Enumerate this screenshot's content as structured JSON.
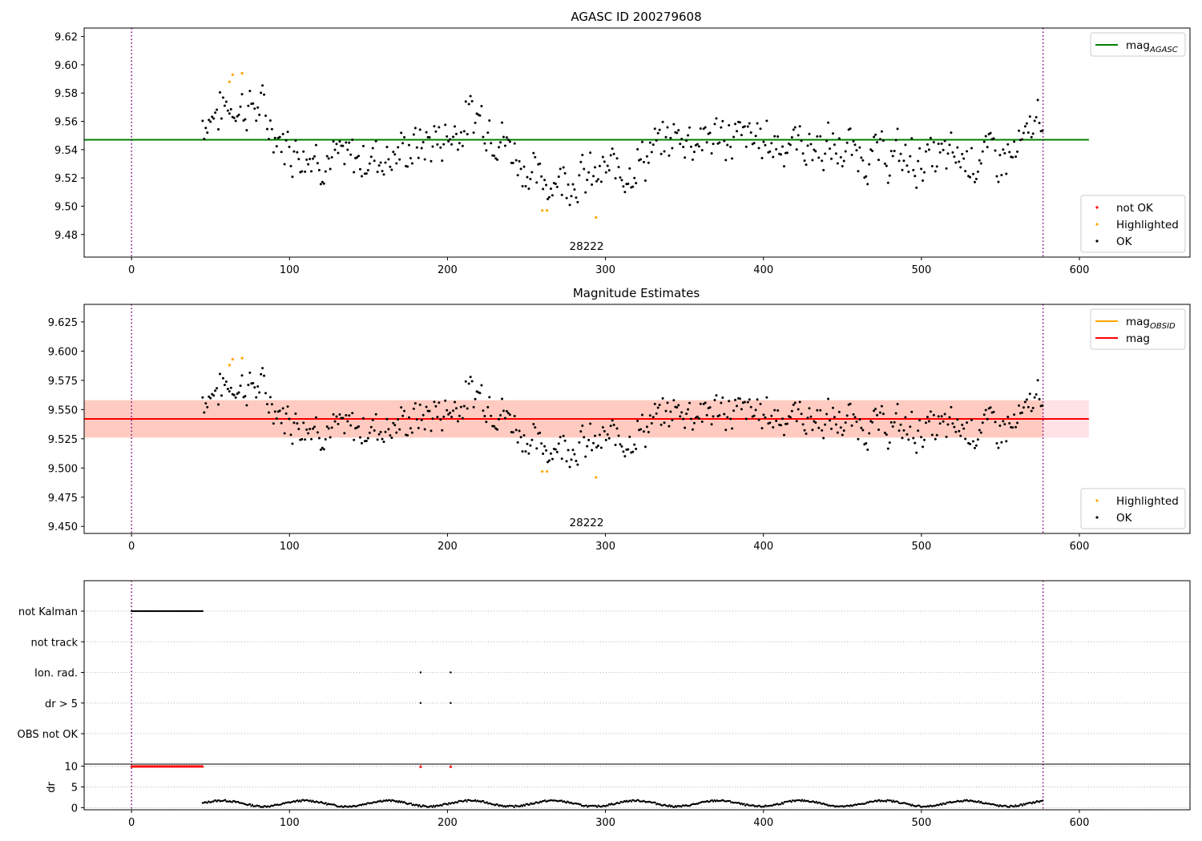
{
  "chart_data": [
    {
      "type": "scatter",
      "title": "AGASC ID 200279608",
      "annotation": "28222",
      "xlim": [
        -30,
        670
      ],
      "ylim": [
        9.464,
        9.626
      ],
      "x_ticks": [
        0,
        100,
        200,
        300,
        400,
        500,
        600
      ],
      "y_ticks": [
        9.48,
        9.5,
        9.52,
        9.54,
        9.56,
        9.58,
        9.6,
        9.62
      ],
      "y_tick_labels": [
        "9.48",
        "9.50",
        "9.52",
        "9.54",
        "9.56",
        "9.58",
        "9.60",
        "9.62"
      ],
      "vlines": [
        0,
        577
      ],
      "hlines": [
        {
          "name": "mag_AGASC",
          "y": 9.547,
          "x_range": [
            -30,
            606
          ],
          "color": "#008000"
        }
      ],
      "legends": [
        {
          "position": "top-right",
          "entries": [
            {
              "label_main": "mag",
              "label_sub": "AGASC",
              "kind": "line",
              "color": "#008000"
            }
          ]
        },
        {
          "position": "bottom-right",
          "entries": [
            {
              "label_main": "not OK",
              "kind": "dot",
              "color": "#ff0000"
            },
            {
              "label_main": "Highlighted",
              "kind": "dot",
              "color": "#ffa500"
            },
            {
              "label_main": "OK",
              "kind": "dot",
              "color": "#000000"
            }
          ]
        }
      ],
      "series": [
        {
          "name": "OK",
          "color": "#000000",
          "x_start": 45,
          "x_end": 577,
          "step": 0.75
        },
        {
          "name": "Highlighted",
          "color": "#ffa500",
          "x": [
            62,
            64,
            70,
            260,
            263,
            294
          ],
          "y": [
            9.588,
            9.593,
            9.594,
            9.497,
            9.497,
            9.492
          ]
        },
        {
          "name": "not OK",
          "color": "#ff0000",
          "x": [],
          "y": []
        }
      ],
      "trend": {
        "x": [
          45,
          60,
          80,
          95,
          130,
          170,
          200,
          220,
          240,
          258,
          275,
          290,
          320,
          345,
          380,
          420,
          460,
          500,
          530,
          560,
          568,
          577
        ],
        "y": [
          9.56,
          9.571,
          9.57,
          9.545,
          9.531,
          9.538,
          9.55,
          9.566,
          9.541,
          9.516,
          9.522,
          9.519,
          9.531,
          9.55,
          9.548,
          9.545,
          9.537,
          9.532,
          9.535,
          9.536,
          9.548,
          9.573
        ]
      }
    },
    {
      "type": "scatter",
      "title": "Magnitude Estimates",
      "annotation": "28222",
      "xlim": [
        -30,
        670
      ],
      "ylim": [
        9.444,
        9.64
      ],
      "x_ticks": [
        0,
        100,
        200,
        300,
        400,
        500,
        600
      ],
      "y_ticks": [
        9.45,
        9.475,
        9.5,
        9.525,
        9.55,
        9.575,
        9.6,
        9.625
      ],
      "y_tick_labels": [
        "9.450",
        "9.475",
        "9.500",
        "9.525",
        "9.550",
        "9.575",
        "9.600",
        "9.625"
      ],
      "vlines": [
        0,
        577
      ],
      "bands": [
        {
          "y": [
            9.526,
            9.558
          ],
          "x_range": [
            -30,
            606
          ],
          "color": "#ffb6c1",
          "opacity": 0.4
        },
        {
          "y": [
            9.526,
            9.558
          ],
          "x_range": [
            -30,
            577
          ],
          "color": "#ffa07a",
          "opacity": 0.35
        }
      ],
      "hlines": [
        {
          "name": "mag",
          "y": 9.542,
          "x_range": [
            -30,
            606
          ],
          "color": "#ff0000"
        }
      ],
      "legends": [
        {
          "position": "top-right",
          "entries": [
            {
              "label_main": "mag",
              "label_sub": "OBSID",
              "kind": "line",
              "color": "#ffa500"
            },
            {
              "label_main": "mag",
              "kind": "line",
              "color": "#ff0000"
            }
          ]
        },
        {
          "position": "bottom-right",
          "entries": [
            {
              "label_main": "Highlighted",
              "kind": "dot",
              "color": "#ffa500"
            },
            {
              "label_main": "OK",
              "kind": "dot",
              "color": "#000000"
            }
          ]
        }
      ],
      "series": [
        {
          "name": "OK",
          "color": "#000000",
          "same_as_panel": 0
        },
        {
          "name": "Highlighted",
          "color": "#ffa500",
          "x": [
            62,
            64,
            70,
            260,
            263,
            294
          ],
          "y": [
            9.588,
            9.593,
            9.594,
            9.497,
            9.497,
            9.492
          ]
        }
      ]
    },
    {
      "type": "scatter",
      "title": "",
      "xlim": [
        -30,
        670
      ],
      "categories": [
        "not Kalman",
        "not track",
        "Ion. rad.",
        "dr > 5",
        "OBS not OK"
      ],
      "flags": [
        {
          "category": "not Kalman",
          "x_start": 0,
          "x_end": 45,
          "step": 0.75
        },
        {
          "category": "Ion. rad.",
          "x": [
            183,
            202
          ]
        },
        {
          "category": "dr > 5",
          "x": [
            183,
            202
          ]
        }
      ],
      "vlines": [
        0,
        577
      ]
    },
    {
      "type": "scatter",
      "title": "",
      "ylabel": "dr",
      "xlim": [
        -30,
        670
      ],
      "ylim": [
        -0.5,
        10.5
      ],
      "x_ticks": [
        0,
        100,
        200,
        300,
        400,
        500,
        600
      ],
      "y_ticks": [
        0,
        5,
        10
      ],
      "y_tick_labels": [
        "0",
        "5",
        "10"
      ],
      "vlines": [
        0,
        577
      ],
      "clipped": {
        "color": "#ff0000",
        "y": 10,
        "x_start": 0,
        "x_end": 45,
        "step": 0.75,
        "extra_x": [
          183,
          202
        ]
      },
      "series": [
        {
          "name": "dr",
          "color": "#000000",
          "x_start": 45,
          "x_end": 577,
          "step": 0.75
        }
      ]
    }
  ]
}
